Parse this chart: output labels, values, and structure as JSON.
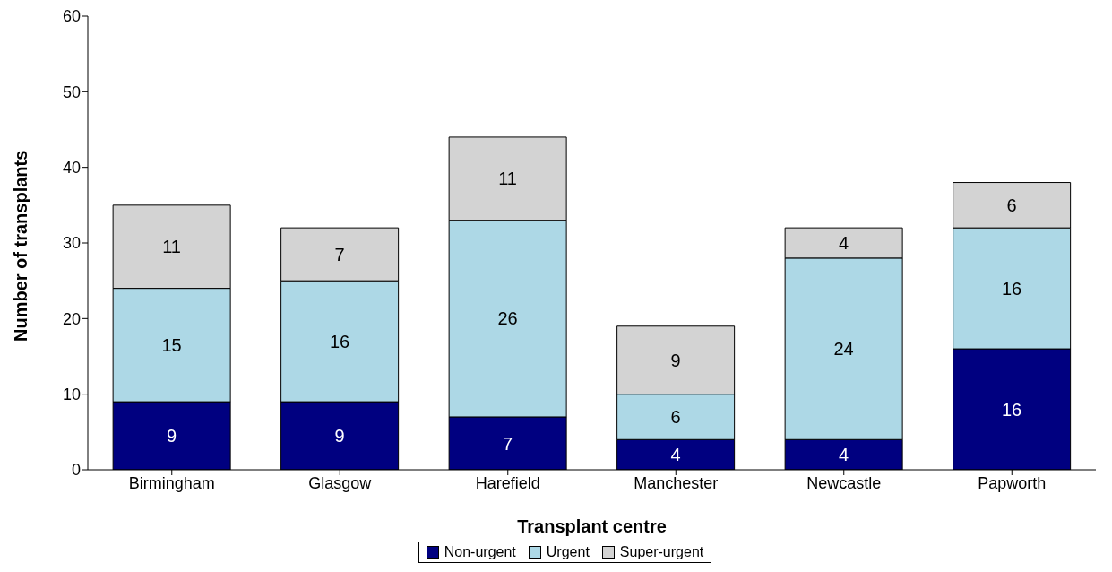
{
  "chart_data": {
    "type": "bar",
    "stacked": true,
    "xlabel": "Transplant centre",
    "ylabel": "Number of transplants",
    "categories": [
      "Birmingham",
      "Glasgow",
      "Harefield",
      "Manchester",
      "Newcastle",
      "Papworth"
    ],
    "series": [
      {
        "name": "Non-urgent",
        "color": "#000080",
        "values": [
          9,
          9,
          7,
          4,
          4,
          16
        ]
      },
      {
        "name": "Urgent",
        "color": "#add8e6",
        "values": [
          15,
          16,
          26,
          6,
          24,
          16
        ]
      },
      {
        "name": "Super-urgent",
        "color": "#d3d3d3",
        "values": [
          11,
          7,
          11,
          9,
          4,
          6
        ]
      }
    ],
    "ylim": [
      0,
      60
    ],
    "yticks": [
      0,
      10,
      20,
      30,
      40,
      50,
      60
    ],
    "grid": false,
    "legend": "bottom",
    "data_labels": true
  }
}
